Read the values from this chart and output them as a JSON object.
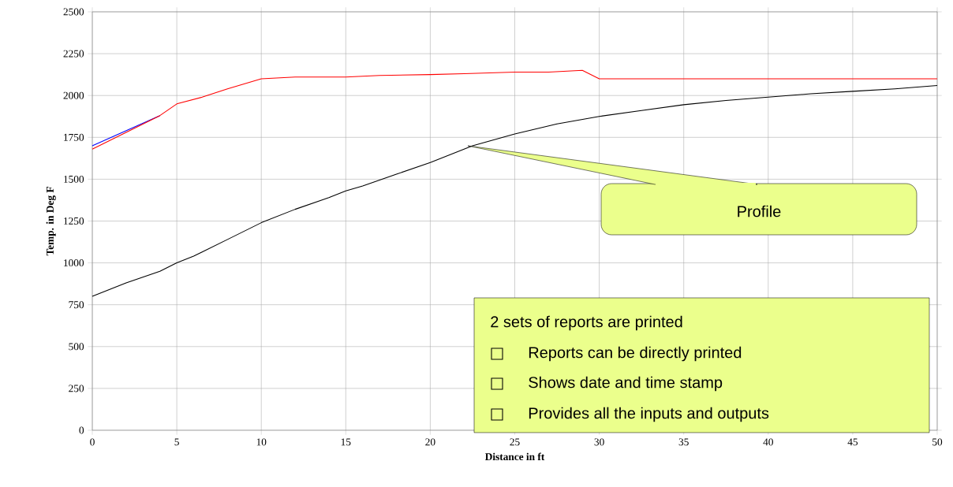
{
  "chart_data": {
    "type": "line",
    "xlabel": "Distance in ft",
    "ylabel": "Temp. in Deg F",
    "xlim": [
      0,
      50
    ],
    "ylim": [
      0,
      2500
    ],
    "xticks": [
      0,
      5,
      10,
      15,
      20,
      25,
      30,
      35,
      40,
      45,
      50
    ],
    "yticks": [
      0,
      250,
      500,
      750,
      1000,
      1250,
      1500,
      1750,
      2000,
      2250,
      2500
    ],
    "grid": true,
    "marker": "none",
    "line_style": "solid",
    "series": [
      {
        "color": "#000000",
        "x": [
          0,
          2,
          4,
          5,
          6,
          8,
          10,
          12,
          14,
          15,
          16,
          18,
          20,
          22.5,
          25,
          27.5,
          30,
          32.5,
          35,
          37.5,
          40,
          42.5,
          45,
          47.5,
          50
        ],
        "values": [
          800,
          880,
          950,
          1000,
          1040,
          1140,
          1240,
          1320,
          1390,
          1430,
          1460,
          1530,
          1600,
          1700,
          1770,
          1830,
          1875,
          1910,
          1945,
          1970,
          1990,
          2010,
          2025,
          2040,
          2060
        ]
      },
      {
        "color": "#0000ff",
        "x": [
          0,
          4
        ],
        "values": [
          1700,
          1880
        ]
      },
      {
        "color": "#ff0000",
        "x": [
          0,
          4,
          5,
          6.5,
          8,
          10,
          12,
          15,
          17,
          20,
          22,
          25,
          27,
          29,
          30,
          35,
          40,
          45,
          50
        ],
        "values": [
          1680,
          1880,
          1950,
          1990,
          2040,
          2100,
          2110,
          2110,
          2120,
          2125,
          2130,
          2140,
          2140,
          2150,
          2100,
          2100,
          2100,
          2100,
          2100
        ]
      }
    ],
    "annotations": [
      "Profile",
      "2 sets of reports are printed",
      "Reports can be directly printed",
      "Shows date and time stamp",
      "Provides all the inputs and outputs"
    ]
  }
}
